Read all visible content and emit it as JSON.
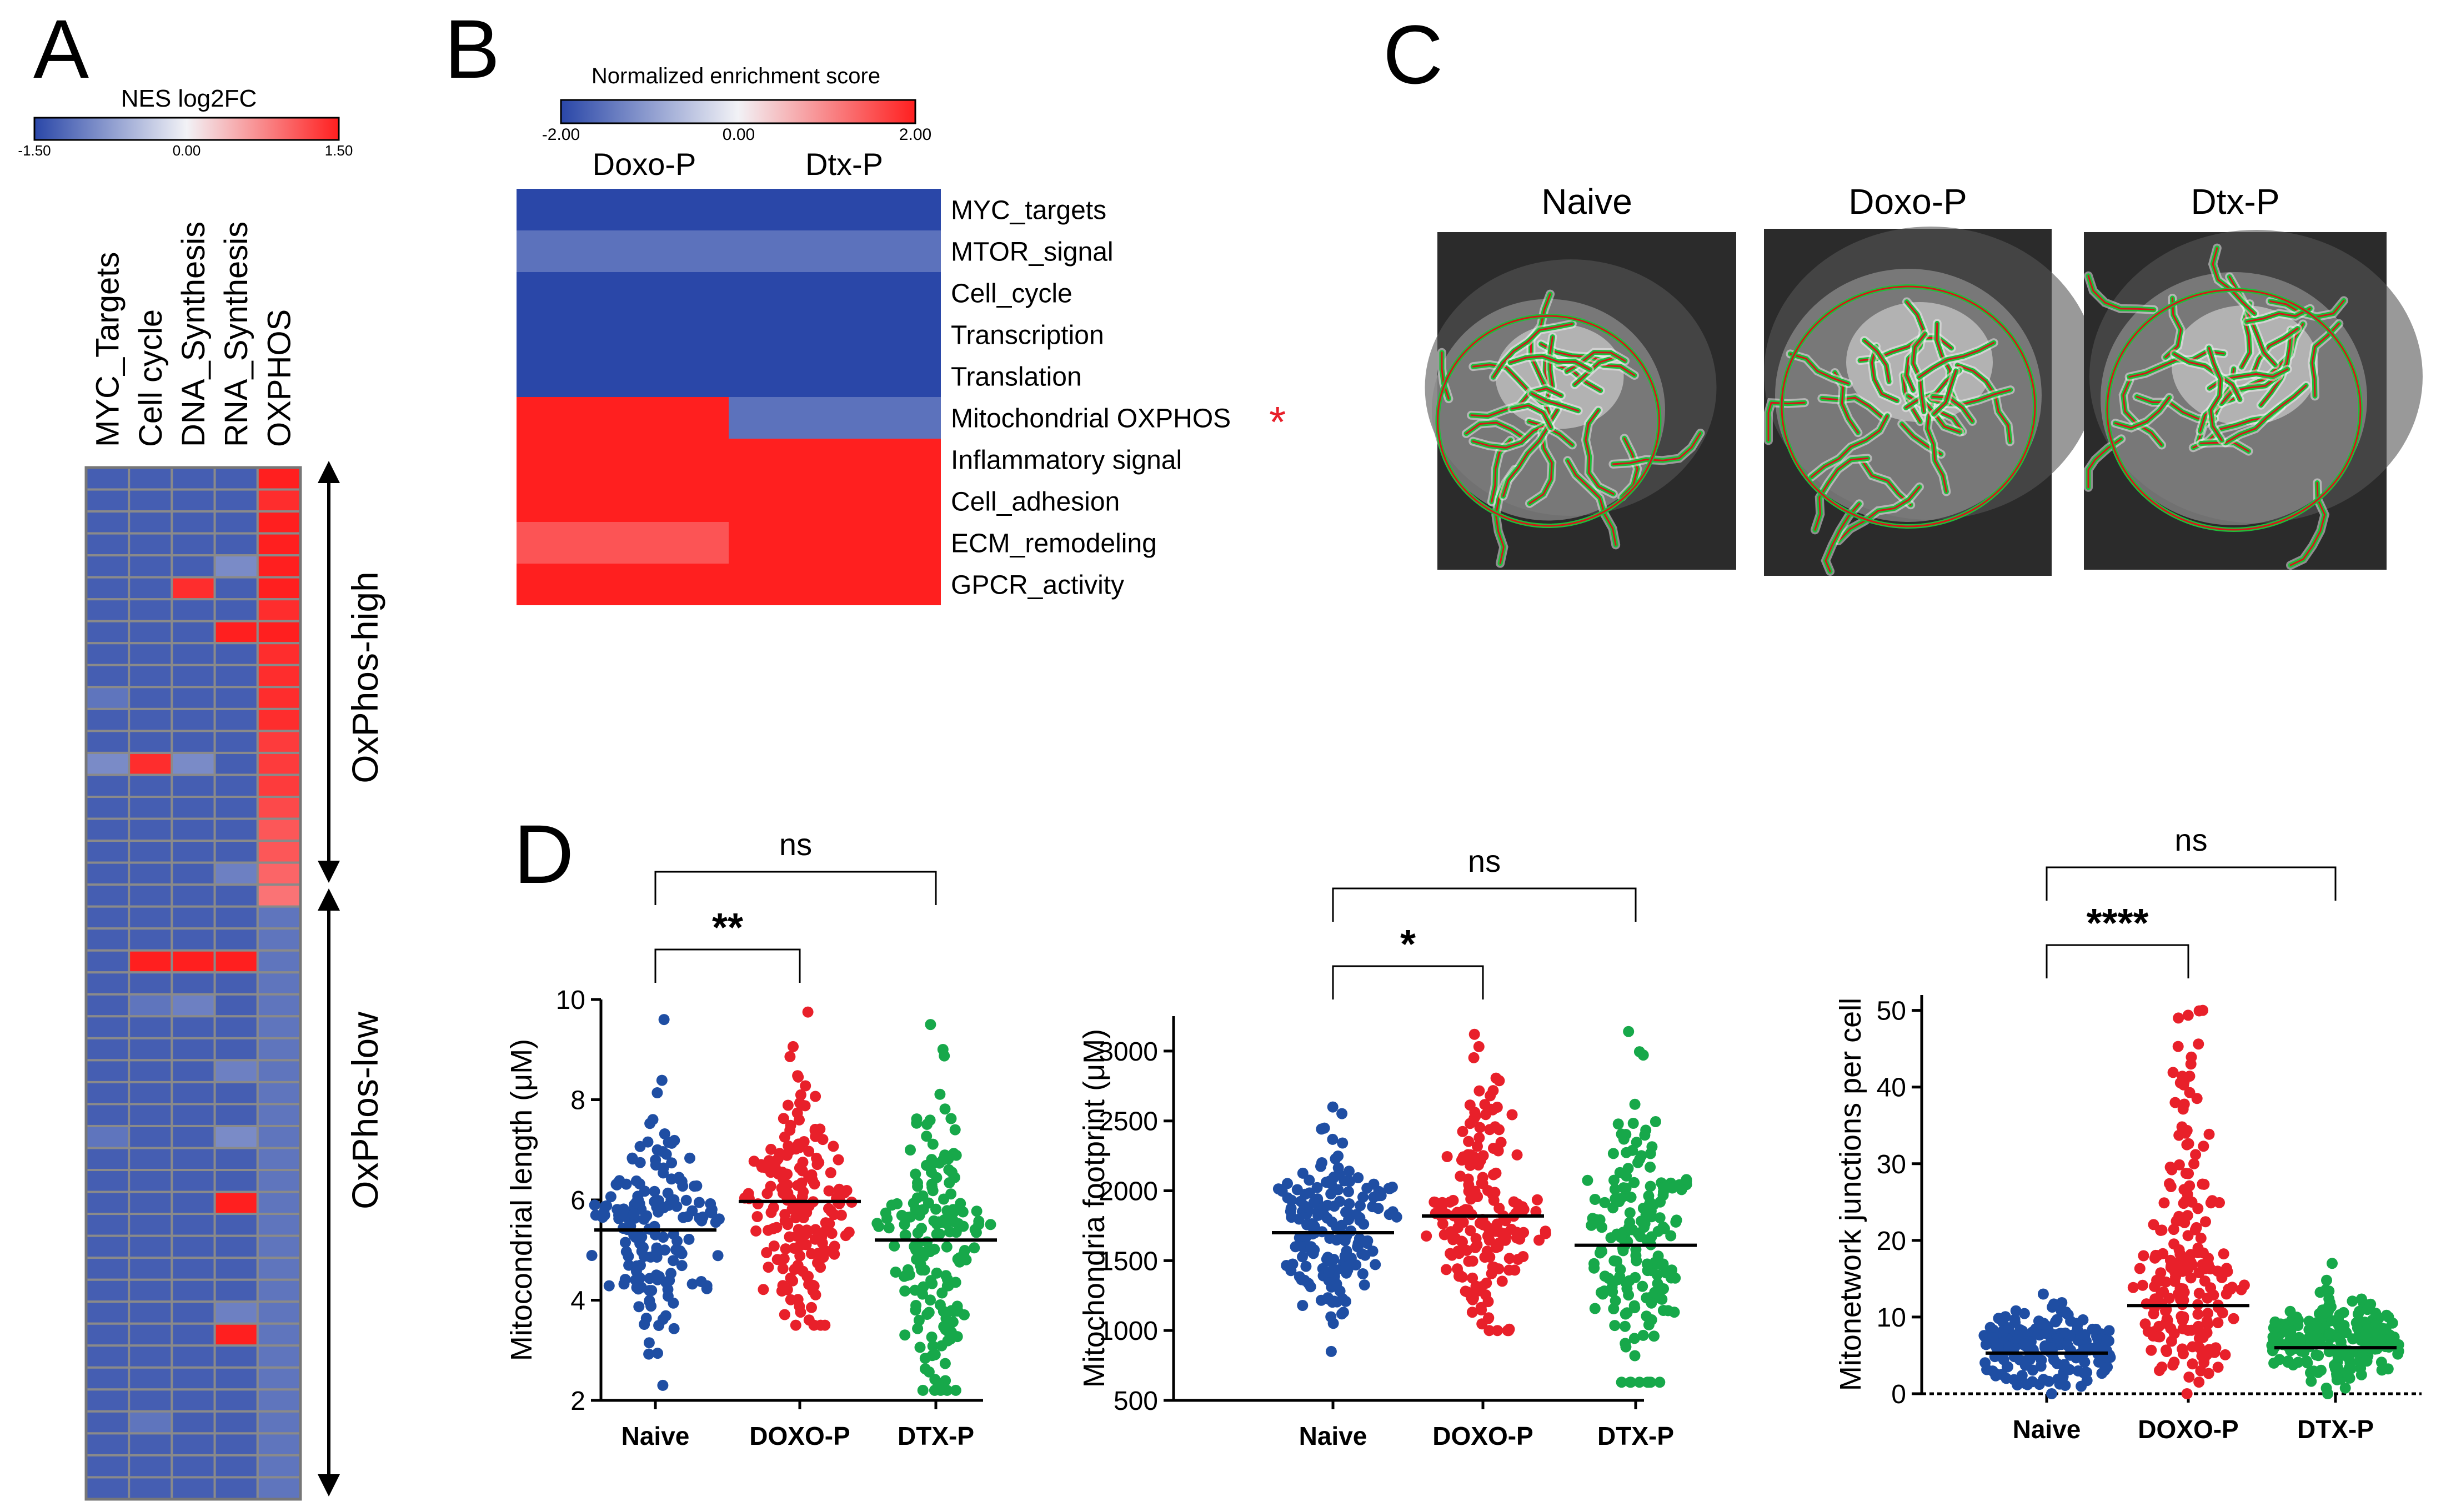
{
  "panel_labels": {
    "a": "A",
    "b": "B",
    "c": "C",
    "d": "D"
  },
  "panelA": {
    "colorbar_title": "NES log2FC",
    "colorbar_ticks": [
      "-1.50",
      "0.00",
      "1.50"
    ],
    "colorbar_range": [
      -1.5,
      1.5
    ],
    "columns": [
      "MYC_Targets",
      "Cell cycle",
      "DNA_Synthesis",
      "RNA_Synthesis",
      "OXPHOS"
    ],
    "group_high": "OxPhos-high",
    "group_low": "OxPhos-low",
    "group_high_rows": 20,
    "rows": [
      [
        -1.3,
        -1.3,
        -1.3,
        -1.3,
        1.5
      ],
      [
        -1.3,
        -1.3,
        -1.3,
        -1.3,
        1.4
      ],
      [
        -1.3,
        -1.3,
        -1.3,
        -1.3,
        1.5
      ],
      [
        -1.3,
        -1.3,
        -1.3,
        -1.3,
        1.5
      ],
      [
        -1.3,
        -1.3,
        -1.3,
        -0.9,
        1.5
      ],
      [
        -1.3,
        -1.3,
        1.4,
        -1.3,
        1.5
      ],
      [
        -1.3,
        -1.3,
        -1.3,
        -1.3,
        1.4
      ],
      [
        -1.3,
        -1.3,
        -1.3,
        1.5,
        1.5
      ],
      [
        -1.3,
        -1.3,
        -1.3,
        -1.3,
        1.4
      ],
      [
        -1.3,
        -1.3,
        -1.3,
        -1.3,
        1.4
      ],
      [
        -1.1,
        -1.3,
        -1.3,
        -1.3,
        1.4
      ],
      [
        -1.3,
        -1.3,
        -1.3,
        -1.3,
        1.4
      ],
      [
        -1.3,
        -1.3,
        -1.3,
        -1.3,
        1.3
      ],
      [
        -0.9,
        1.4,
        -0.9,
        -1.3,
        1.3
      ],
      [
        -1.3,
        -1.3,
        -1.3,
        -1.3,
        1.3
      ],
      [
        -1.3,
        -1.3,
        -1.3,
        -1.3,
        1.2
      ],
      [
        -1.3,
        -1.3,
        -1.3,
        -1.3,
        1.1
      ],
      [
        -1.3,
        -1.3,
        -1.3,
        -1.3,
        1.1
      ],
      [
        -1.3,
        -1.3,
        -1.3,
        -1.0,
        1.0
      ],
      [
        -1.3,
        -1.3,
        -1.3,
        -1.3,
        0.9
      ],
      [
        -1.3,
        -1.3,
        -1.3,
        -1.3,
        -1.1
      ],
      [
        -1.3,
        -1.3,
        -1.3,
        -1.3,
        -1.1
      ],
      [
        -1.3,
        1.5,
        1.5,
        1.5,
        -1.1
      ],
      [
        -1.3,
        -1.3,
        -1.3,
        -1.3,
        -1.1
      ],
      [
        -1.3,
        -1.1,
        -1.0,
        -1.3,
        -1.1
      ],
      [
        -1.3,
        -1.3,
        -1.3,
        -1.3,
        -1.1
      ],
      [
        -1.3,
        -1.3,
        -1.3,
        -1.3,
        -1.1
      ],
      [
        -1.3,
        -1.3,
        -1.3,
        -1.0,
        -1.1
      ],
      [
        -1.3,
        -1.3,
        -1.3,
        -1.3,
        -1.1
      ],
      [
        -1.3,
        -1.3,
        -1.3,
        -1.3,
        -1.1
      ],
      [
        -1.1,
        -1.3,
        -1.3,
        -0.9,
        -1.1
      ],
      [
        -1.3,
        -1.3,
        -1.3,
        -1.3,
        -1.1
      ],
      [
        -1.3,
        -1.3,
        -1.3,
        -1.3,
        -1.1
      ],
      [
        -1.3,
        -1.3,
        -1.3,
        1.5,
        -1.1
      ],
      [
        -1.3,
        -1.3,
        -1.3,
        -1.3,
        -1.1
      ],
      [
        -1.3,
        -1.3,
        -1.3,
        -1.3,
        -1.1
      ],
      [
        -1.3,
        -1.3,
        -1.3,
        -1.3,
        -1.1
      ],
      [
        -1.3,
        -1.3,
        -1.3,
        -1.3,
        -1.1
      ],
      [
        -1.3,
        -1.3,
        -1.3,
        -1.0,
        -1.1
      ],
      [
        -1.3,
        -1.3,
        -1.3,
        1.5,
        -1.1
      ],
      [
        -1.3,
        -1.3,
        -1.3,
        -1.3,
        -1.1
      ],
      [
        -1.3,
        -1.3,
        -1.3,
        -1.3,
        -1.1
      ],
      [
        -1.3,
        -1.3,
        -1.3,
        -1.3,
        -1.1
      ],
      [
        -1.3,
        -1.1,
        -1.3,
        -1.3,
        -1.1
      ],
      [
        -1.3,
        -1.3,
        -1.3,
        -1.3,
        -1.1
      ],
      [
        -1.3,
        -1.3,
        -1.3,
        -1.3,
        -1.1
      ],
      [
        -1.3,
        -1.3,
        -1.3,
        -1.3,
        -1.1
      ]
    ]
  },
  "panelB": {
    "colorbar_title": "Normalized enrichment score",
    "colorbar_ticks": [
      "-2.00",
      "0.00",
      "2.00"
    ],
    "colorbar_range": [
      -2,
      2
    ],
    "columns": [
      "Doxo-P",
      "Dtx-P"
    ],
    "rows": [
      {
        "label": "MYC_targets",
        "values": [
          -2.0,
          -2.0
        ]
      },
      {
        "label": "MTOR_signal",
        "values": [
          -1.5,
          -1.5
        ]
      },
      {
        "label": "Cell_cycle",
        "values": [
          -2.0,
          -2.0
        ]
      },
      {
        "label": "Transcription",
        "values": [
          -2.0,
          -2.0
        ]
      },
      {
        "label": "Translation",
        "values": [
          -2.0,
          -2.0
        ]
      },
      {
        "label": "Mitochondrial OXPHOS",
        "values": [
          2.0,
          -1.5
        ],
        "marker": "*"
      },
      {
        "label": "Inflammatory signal",
        "values": [
          2.0,
          2.0
        ]
      },
      {
        "label": "Cell_adhesion",
        "values": [
          2.0,
          2.0
        ]
      },
      {
        "label": "ECM_remodeling",
        "values": [
          1.5,
          2.0
        ]
      },
      {
        "label": "GPCR_activity",
        "values": [
          2.0,
          2.0
        ]
      }
    ],
    "marker_color": "#e8202a"
  },
  "panelC": {
    "images": [
      {
        "label": "Naive"
      },
      {
        "label": "Doxo-P"
      },
      {
        "label": "Dtx-P"
      }
    ]
  },
  "panelD": {
    "group_colors": [
      "#1f4ea3",
      "#e8202a",
      "#17a84a"
    ],
    "charts": [
      {
        "type": "scatter",
        "ylabel": "Mitocondrial length (μM)",
        "ylim": [
          2,
          10
        ],
        "yticks": [
          2,
          4,
          6,
          8,
          10
        ],
        "categories": [
          "Naive",
          "DOXO-P",
          "DTX-P"
        ],
        "means": [
          5.4,
          5.97,
          5.2
        ],
        "ranges": [
          [
            2.3,
            9.6
          ],
          [
            3.5,
            9.75
          ],
          [
            2.2,
            9.5
          ]
        ],
        "sd": [
          1.1,
          1.2,
          1.4
        ],
        "n": 170,
        "brackets": [
          {
            "from": 0,
            "to": 2,
            "label": "ns"
          },
          {
            "from": 0,
            "to": 1,
            "label": "**"
          }
        ]
      },
      {
        "type": "scatter",
        "ylabel": "Mitochondria footprint (μM)",
        "ylim": [
          500,
          3250
        ],
        "yticks": [
          500,
          1000,
          1500,
          2000,
          2500,
          3000
        ],
        "categories": [
          "Naive",
          "DOXO-P",
          "DTX-P"
        ],
        "means": [
          1700,
          1820,
          1610
        ],
        "ranges": [
          [
            850,
            2600
          ],
          [
            1000,
            3120
          ],
          [
            630,
            3140
          ]
        ],
        "sd": [
          330,
          380,
          500
        ],
        "n": 170,
        "brackets": [
          {
            "from": 0,
            "to": 2,
            "label": "ns"
          },
          {
            "from": 0,
            "to": 1,
            "label": "*"
          }
        ]
      },
      {
        "type": "scatter",
        "ylabel": "Mitonetwork junctions per cell",
        "ylim": [
          0,
          52
        ],
        "yticks": [
          0,
          10,
          20,
          30,
          40,
          50
        ],
        "categories": [
          "Naive",
          "DOXO-P",
          "DTX-P"
        ],
        "means": [
          5.3,
          11.5,
          6.0
        ],
        "ranges": [
          [
            0,
            13
          ],
          [
            0,
            50
          ],
          [
            0,
            17
          ]
        ],
        "sd": [
          3.2,
          10.0,
          3.8
        ],
        "n": 200,
        "brackets": [
          {
            "from": 0,
            "to": 2,
            "label": "ns"
          },
          {
            "from": 0,
            "to": 1,
            "label": "****"
          }
        ]
      }
    ]
  }
}
